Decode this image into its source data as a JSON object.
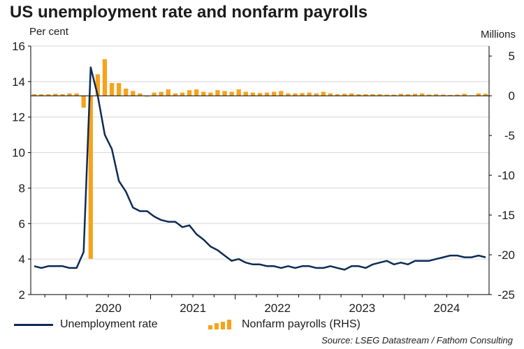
{
  "chart_data": {
    "type": "bar+line",
    "title": "US unemployment rate and nonfarm payrolls",
    "left_axis_label": "Per cent",
    "right_axis_label": "Millions",
    "source": "Source: LSEG Datastream / Fathom Consulting",
    "x_ticks": [
      "2020",
      "2021",
      "2022",
      "2023",
      "2024"
    ],
    "y_left": {
      "min": 2,
      "max": 16,
      "ticks": [
        2,
        4,
        6,
        8,
        10,
        12,
        14,
        16
      ]
    },
    "y_right": {
      "min": -25,
      "max": 6.25,
      "ticks": [
        5,
        0,
        -5,
        -10,
        -15,
        -20,
        -25
      ]
    },
    "months": [
      "2019-08",
      "2019-09",
      "2019-10",
      "2019-11",
      "2019-12",
      "2020-01",
      "2020-02",
      "2020-03",
      "2020-04",
      "2020-05",
      "2020-06",
      "2020-07",
      "2020-08",
      "2020-09",
      "2020-10",
      "2020-11",
      "2020-12",
      "2021-01",
      "2021-02",
      "2021-03",
      "2021-04",
      "2021-05",
      "2021-06",
      "2021-07",
      "2021-08",
      "2021-09",
      "2021-10",
      "2021-11",
      "2021-12",
      "2022-01",
      "2022-02",
      "2022-03",
      "2022-04",
      "2022-05",
      "2022-06",
      "2022-07",
      "2022-08",
      "2022-09",
      "2022-10",
      "2022-11",
      "2022-12",
      "2023-01",
      "2023-02",
      "2023-03",
      "2023-04",
      "2023-05",
      "2023-06",
      "2023-07",
      "2023-08",
      "2023-09",
      "2023-10",
      "2023-11",
      "2023-12",
      "2024-01",
      "2024-02",
      "2024-03",
      "2024-04",
      "2024-05",
      "2024-06",
      "2024-07",
      "2024-08",
      "2024-09",
      "2024-10",
      "2024-11",
      "2024-12"
    ],
    "series": [
      {
        "name": "Unemployment rate",
        "kind": "line",
        "axis": "left",
        "color": "#0d2b55",
        "values": [
          3.6,
          3.5,
          3.6,
          3.6,
          3.6,
          3.5,
          3.5,
          4.4,
          14.8,
          13.2,
          11.0,
          10.2,
          8.4,
          7.8,
          6.9,
          6.7,
          6.7,
          6.4,
          6.2,
          6.1,
          6.1,
          5.8,
          5.9,
          5.4,
          5.1,
          4.7,
          4.5,
          4.2,
          3.9,
          4.0,
          3.8,
          3.7,
          3.7,
          3.6,
          3.6,
          3.5,
          3.6,
          3.5,
          3.6,
          3.6,
          3.5,
          3.5,
          3.6,
          3.5,
          3.4,
          3.6,
          3.6,
          3.5,
          3.7,
          3.8,
          3.9,
          3.7,
          3.8,
          3.7,
          3.9,
          3.9,
          3.9,
          4.0,
          4.1,
          4.2,
          4.2,
          4.1,
          4.1,
          4.2,
          4.1
        ]
      },
      {
        "name": "Nonfarm payrolls (RHS)",
        "kind": "bar",
        "axis": "right",
        "color": "#f7a21b",
        "values": [
          0.2,
          0.2,
          0.2,
          0.25,
          0.2,
          0.3,
          0.3,
          -1.5,
          -20.5,
          2.7,
          4.6,
          1.6,
          1.6,
          0.9,
          0.6,
          0.3,
          -0.1,
          0.4,
          0.5,
          0.8,
          0.3,
          0.4,
          0.7,
          0.8,
          0.5,
          0.4,
          0.7,
          0.6,
          0.5,
          0.8,
          0.5,
          0.4,
          0.35,
          0.4,
          0.5,
          0.6,
          0.3,
          0.3,
          0.35,
          0.4,
          0.3,
          0.5,
          0.3,
          0.2,
          0.25,
          0.3,
          0.2,
          0.2,
          0.2,
          0.2,
          0.15,
          0.15,
          0.25,
          0.2,
          0.25,
          0.3,
          0.15,
          0.2,
          0.15,
          0.1,
          0.15,
          0.25,
          0.05,
          0.3,
          0.25
        ]
      }
    ]
  },
  "legend": {
    "line_label": "Unemployment rate",
    "bar_label": "Nonfarm payrolls (RHS)"
  }
}
